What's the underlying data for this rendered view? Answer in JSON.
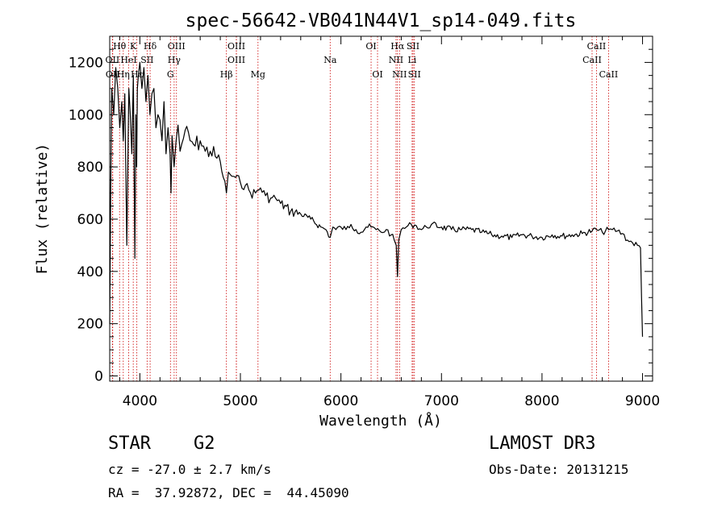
{
  "chart_data": {
    "type": "line",
    "title": "spec-56642-VB041N44V1_sp14-049.fits",
    "xlabel": "Wavelength (Å)",
    "ylabel": "Flux (relative)",
    "xlim": [
      3700,
      9100
    ],
    "ylim": [
      -20,
      1300
    ],
    "xticks": [
      4000,
      5000,
      6000,
      7000,
      8000,
      9000
    ],
    "yticks": [
      0,
      200,
      400,
      600,
      800,
      1000,
      1200
    ],
    "xtick_labels": [
      "4000",
      "5000",
      "6000",
      "7000",
      "8000",
      "9000"
    ],
    "ytick_labels": [
      "0",
      "200",
      "400",
      "600",
      "800",
      "1000",
      "1200"
    ],
    "grid": false,
    "series": [
      {
        "name": "flux",
        "x": [
          3700,
          3710,
          3720,
          3740,
          3760,
          3780,
          3800,
          3820,
          3835,
          3850,
          3870,
          3890,
          3905,
          3920,
          3935,
          3950,
          3960,
          3968,
          3975,
          3985,
          4000,
          4020,
          4040,
          4060,
          4080,
          4100,
          4120,
          4140,
          4160,
          4180,
          4200,
          4220,
          4240,
          4260,
          4280,
          4300,
          4310,
          4320,
          4340,
          4360,
          4380,
          4400,
          4450,
          4500,
          4550,
          4600,
          4650,
          4700,
          4750,
          4800,
          4830,
          4861,
          4880,
          4900,
          4950,
          5000,
          5050,
          5100,
          5150,
          5200,
          5250,
          5300,
          5350,
          5400,
          5500,
          5600,
          5700,
          5800,
          5850,
          5893,
          5920,
          5950,
          6000,
          6050,
          6100,
          6150,
          6200,
          6250,
          6300,
          6350,
          6400,
          6450,
          6500,
          6530,
          6550,
          6563,
          6575,
          6600,
          6650,
          6700,
          6750,
          6800,
          6850,
          6900,
          7000,
          7100,
          7200,
          7300,
          7400,
          7500,
          7600,
          7700,
          7800,
          7900,
          8000,
          8100,
          8200,
          8300,
          8400,
          8498,
          8542,
          8600,
          8662,
          8700,
          8750,
          8800,
          8850,
          8900,
          8950,
          8980,
          8990,
          9000
        ],
        "y": [
          200,
          700,
          1100,
          1000,
          1180,
          1100,
          950,
          1050,
          900,
          1080,
          500,
          1100,
          1000,
          850,
          1150,
          450,
          1000,
          800,
          1100,
          1150,
          1200,
          1100,
          1180,
          1050,
          1150,
          1000,
          1080,
          1100,
          950,
          1000,
          980,
          900,
          1050,
          850,
          950,
          850,
          700,
          920,
          800,
          900,
          960,
          860,
          940,
          900,
          880,
          900,
          860,
          860,
          840,
          820,
          760,
          700,
          780,
          770,
          760,
          740,
          730,
          700,
          700,
          720,
          690,
          680,
          680,
          660,
          630,
          620,
          600,
          570,
          560,
          530,
          570,
          560,
          570,
          560,
          580,
          560,
          550,
          570,
          570,
          560,
          550,
          560,
          540,
          520,
          500,
          380,
          520,
          560,
          570,
          580,
          575,
          560,
          570,
          580,
          570,
          560,
          560,
          560,
          550,
          540,
          535,
          530,
          540,
          535,
          530,
          540,
          535,
          540,
          545,
          555,
          560,
          550,
          560,
          560,
          555,
          545,
          520,
          510,
          500,
          490,
          300,
          150
        ]
      }
    ],
    "lines": [
      {
        "label": "Hθ",
        "x": 3798,
        "row": 0
      },
      {
        "label": "K",
        "x": 3934,
        "row": 0
      },
      {
        "label": "Hδ",
        "x": 4102,
        "row": 0
      },
      {
        "label": "OIII",
        "x": 4364,
        "row": 0
      },
      {
        "label": "OIII",
        "x": 4960,
        "row": 0
      },
      {
        "label": "OI",
        "x": 6300,
        "row": 0
      },
      {
        "label": "Hα",
        "x": 6563,
        "row": 0
      },
      {
        "label": "SII",
        "x": 6717,
        "row": 0
      },
      {
        "label": "CaII",
        "x": 8542,
        "row": 0
      },
      {
        "label": "OII",
        "x": 3727,
        "row": 1
      },
      {
        "label": "HeI",
        "x": 3889,
        "row": 1
      },
      {
        "label": "SII",
        "x": 4072,
        "row": 1
      },
      {
        "label": "Hγ",
        "x": 4341,
        "row": 1
      },
      {
        "label": "OIII",
        "x": 4960,
        "row": 1
      },
      {
        "label": "Na",
        "x": 5893,
        "row": 1
      },
      {
        "label": "NII",
        "x": 6548,
        "row": 1
      },
      {
        "label": "Li",
        "x": 6708,
        "row": 1
      },
      {
        "label": "CaII",
        "x": 8498,
        "row": 1
      },
      {
        "label": "OII",
        "x": 3730,
        "row": 2
      },
      {
        "label": "Hη",
        "x": 3835,
        "row": 2
      },
      {
        "label": "Hε",
        "x": 3970,
        "row": 2
      },
      {
        "label": "G",
        "x": 4304,
        "row": 2
      },
      {
        "label": "Hβ",
        "x": 4861,
        "row": 2
      },
      {
        "label": "Mg",
        "x": 5175,
        "row": 2
      },
      {
        "label": "OI",
        "x": 6364,
        "row": 2
      },
      {
        "label": "NII",
        "x": 6583,
        "row": 2
      },
      {
        "label": "SII",
        "x": 6731,
        "row": 2
      },
      {
        "label": "CaII",
        "x": 8662,
        "row": 2
      }
    ]
  },
  "footer": {
    "object_type": "STAR",
    "subclass": "G2",
    "survey": "LAMOST DR3",
    "cz": "cz = -27.0 ± 2.7 km/s",
    "obs_date": "Obs-Date: 20131215",
    "radec": "RA =  37.92872, DEC =  44.45090"
  },
  "colors": {
    "line_marker": "#cc0000",
    "spectrum": "#000000"
  }
}
